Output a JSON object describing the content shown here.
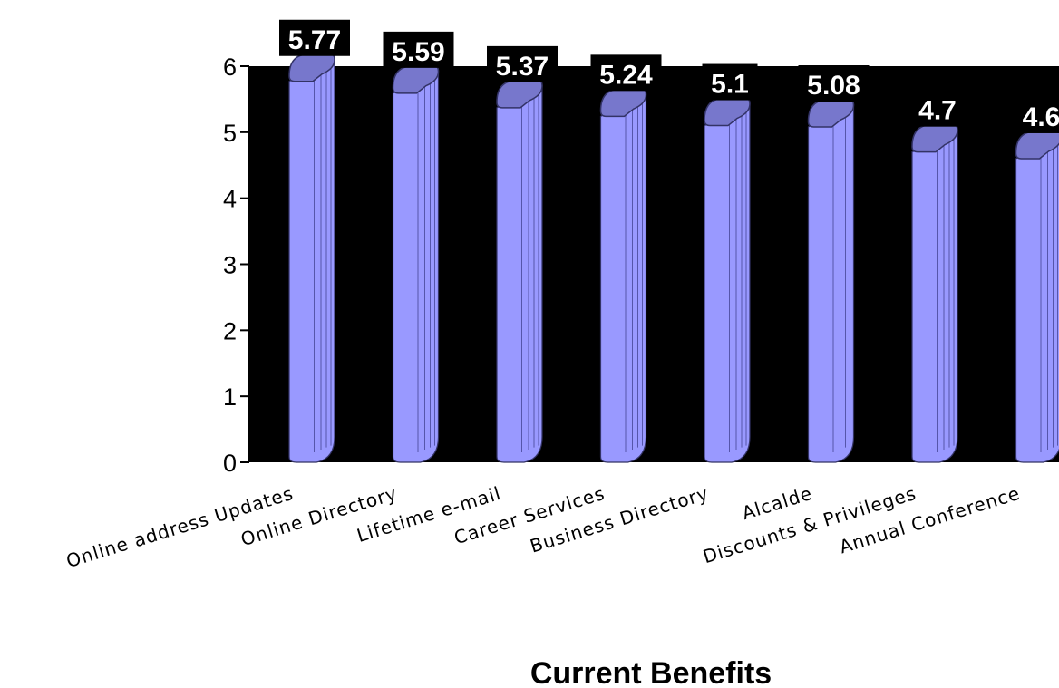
{
  "chart_data": {
    "type": "bar",
    "categories": [
      "Online address Updates",
      "Online Directory",
      "Lifetime e-mail",
      "Career Services",
      "Business Directory",
      "Alcalde",
      "Discounts & Privileges",
      "Annual Conference"
    ],
    "values": [
      5.77,
      5.59,
      5.37,
      5.24,
      5.1,
      5.08,
      4.7,
      4.6
    ],
    "value_labels": [
      "5.77",
      "5.59",
      "5.37",
      "5.24",
      "5.1",
      "5.08",
      "4.7",
      "4.6"
    ],
    "title": "",
    "xlabel": "Current Benefits",
    "ylabel": "",
    "ylim": [
      0,
      6
    ],
    "yticks": [
      "0",
      "1",
      "2",
      "3",
      "4",
      "5",
      "6"
    ],
    "grid": false,
    "legend": "none",
    "plot_background": "#000000",
    "bar_color": "#9999ff",
    "bar_top_color": "#7777cc",
    "bar_edge_color": "#333366"
  }
}
